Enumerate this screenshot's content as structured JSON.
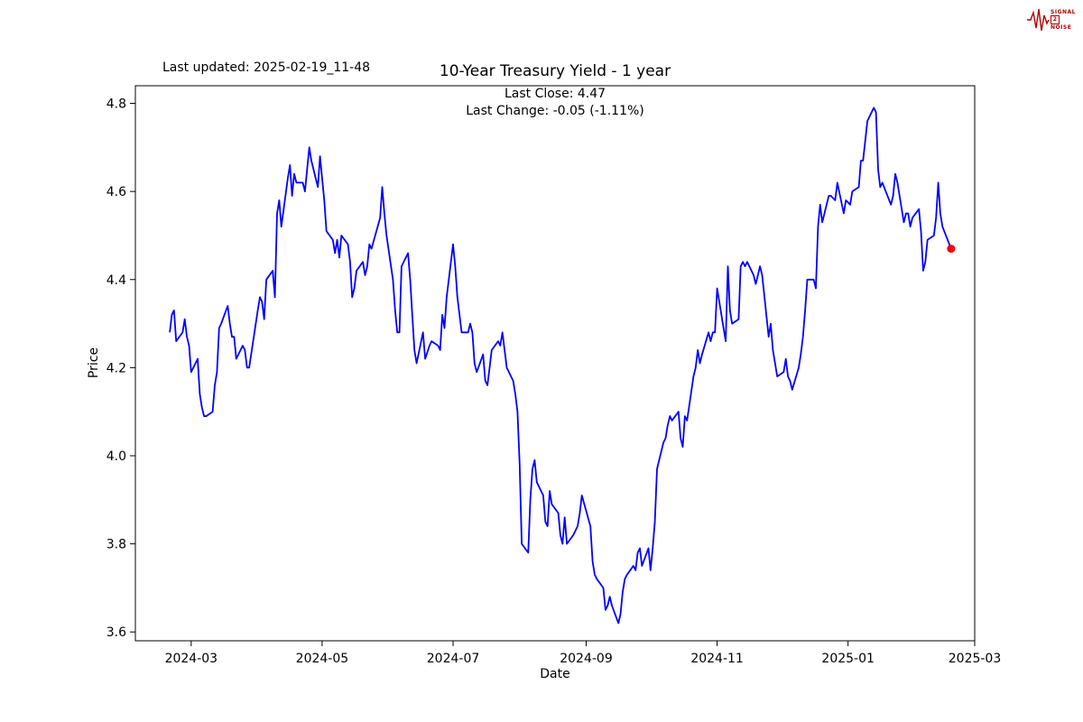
{
  "header": {
    "last_updated": "Last updated: 2025-02-19_11-48",
    "logo_lines": [
      "SIGNAL",
      "2",
      "NOISE"
    ]
  },
  "chart_data": {
    "type": "line",
    "title": "10-Year Treasury Yield - 1 year",
    "subtitle_lines": [
      "Last Close: 4.47",
      "Last Change: -0.05 (-1.11%)"
    ],
    "xlabel": "Date",
    "ylabel": "Price",
    "last_close": 4.47,
    "last_change": -0.05,
    "last_change_pct": "-1.11%",
    "line_color": "#0000ff",
    "marker_color": "#ff0000",
    "grid": false,
    "ylim": [
      3.58,
      4.84
    ],
    "x_domain": [
      "2024-02-04",
      "2025-03-01"
    ],
    "y_ticks": [
      {
        "value": 3.6,
        "label": "3.6"
      },
      {
        "value": 3.8,
        "label": "3.8"
      },
      {
        "value": 4.0,
        "label": "4.0"
      },
      {
        "value": 4.2,
        "label": "4.2"
      },
      {
        "value": 4.4,
        "label": "4.4"
      },
      {
        "value": 4.6,
        "label": "4.6"
      },
      {
        "value": 4.8,
        "label": "4.8"
      }
    ],
    "x_ticks": [
      {
        "date": "2024-03-01",
        "label": "2024-03"
      },
      {
        "date": "2024-05-01",
        "label": "2024-05"
      },
      {
        "date": "2024-07-01",
        "label": "2024-07"
      },
      {
        "date": "2024-09-01",
        "label": "2024-09"
      },
      {
        "date": "2024-11-01",
        "label": "2024-11"
      },
      {
        "date": "2025-01-01",
        "label": "2025-01"
      },
      {
        "date": "2025-03-01",
        "label": "2025-03"
      }
    ],
    "series": [
      {
        "name": "10-Year Treasury Yield",
        "color": "#0000ff",
        "points": [
          [
            "2024-02-20",
            4.28
          ],
          [
            "2024-02-21",
            4.32
          ],
          [
            "2024-02-22",
            4.33
          ],
          [
            "2024-02-23",
            4.26
          ],
          [
            "2024-02-26",
            4.28
          ],
          [
            "2024-02-27",
            4.31
          ],
          [
            "2024-02-28",
            4.27
          ],
          [
            "2024-02-29",
            4.25
          ],
          [
            "2024-03-01",
            4.19
          ],
          [
            "2024-03-04",
            4.22
          ],
          [
            "2024-03-05",
            4.14
          ],
          [
            "2024-03-06",
            4.11
          ],
          [
            "2024-03-07",
            4.09
          ],
          [
            "2024-03-08",
            4.09
          ],
          [
            "2024-03-11",
            4.1
          ],
          [
            "2024-03-12",
            4.16
          ],
          [
            "2024-03-13",
            4.19
          ],
          [
            "2024-03-14",
            4.29
          ],
          [
            "2024-03-15",
            4.3
          ],
          [
            "2024-03-18",
            4.34
          ],
          [
            "2024-03-19",
            4.3
          ],
          [
            "2024-03-20",
            4.27
          ],
          [
            "2024-03-21",
            4.27
          ],
          [
            "2024-03-22",
            4.22
          ],
          [
            "2024-03-25",
            4.25
          ],
          [
            "2024-03-26",
            4.24
          ],
          [
            "2024-03-27",
            4.2
          ],
          [
            "2024-03-28",
            4.2
          ],
          [
            "2024-04-01",
            4.33
          ],
          [
            "2024-04-02",
            4.36
          ],
          [
            "2024-04-03",
            4.35
          ],
          [
            "2024-04-04",
            4.31
          ],
          [
            "2024-04-05",
            4.4
          ],
          [
            "2024-04-08",
            4.42
          ],
          [
            "2024-04-09",
            4.36
          ],
          [
            "2024-04-10",
            4.55
          ],
          [
            "2024-04-11",
            4.58
          ],
          [
            "2024-04-12",
            4.52
          ],
          [
            "2024-04-15",
            4.63
          ],
          [
            "2024-04-16",
            4.66
          ],
          [
            "2024-04-17",
            4.59
          ],
          [
            "2024-04-18",
            4.64
          ],
          [
            "2024-04-19",
            4.62
          ],
          [
            "2024-04-22",
            4.62
          ],
          [
            "2024-04-23",
            4.6
          ],
          [
            "2024-04-24",
            4.65
          ],
          [
            "2024-04-25",
            4.7
          ],
          [
            "2024-04-26",
            4.67
          ],
          [
            "2024-04-29",
            4.61
          ],
          [
            "2024-04-30",
            4.68
          ],
          [
            "2024-05-01",
            4.63
          ],
          [
            "2024-05-02",
            4.58
          ],
          [
            "2024-05-03",
            4.51
          ],
          [
            "2024-05-06",
            4.49
          ],
          [
            "2024-05-07",
            4.46
          ],
          [
            "2024-05-08",
            4.49
          ],
          [
            "2024-05-09",
            4.45
          ],
          [
            "2024-05-10",
            4.5
          ],
          [
            "2024-05-13",
            4.48
          ],
          [
            "2024-05-14",
            4.44
          ],
          [
            "2024-05-15",
            4.36
          ],
          [
            "2024-05-16",
            4.38
          ],
          [
            "2024-05-17",
            4.42
          ],
          [
            "2024-05-20",
            4.44
          ],
          [
            "2024-05-21",
            4.41
          ],
          [
            "2024-05-22",
            4.43
          ],
          [
            "2024-05-23",
            4.48
          ],
          [
            "2024-05-24",
            4.47
          ],
          [
            "2024-05-28",
            4.54
          ],
          [
            "2024-05-29",
            4.61
          ],
          [
            "2024-05-30",
            4.55
          ],
          [
            "2024-05-31",
            4.5
          ],
          [
            "2024-06-03",
            4.4
          ],
          [
            "2024-06-04",
            4.33
          ],
          [
            "2024-06-05",
            4.28
          ],
          [
            "2024-06-06",
            4.28
          ],
          [
            "2024-06-07",
            4.43
          ],
          [
            "2024-06-10",
            4.46
          ],
          [
            "2024-06-11",
            4.4
          ],
          [
            "2024-06-12",
            4.32
          ],
          [
            "2024-06-13",
            4.24
          ],
          [
            "2024-06-14",
            4.21
          ],
          [
            "2024-06-17",
            4.28
          ],
          [
            "2024-06-18",
            4.22
          ],
          [
            "2024-06-20",
            4.25
          ],
          [
            "2024-06-21",
            4.26
          ],
          [
            "2024-06-24",
            4.25
          ],
          [
            "2024-06-25",
            4.24
          ],
          [
            "2024-06-26",
            4.32
          ],
          [
            "2024-06-27",
            4.29
          ],
          [
            "2024-06-28",
            4.36
          ],
          [
            "2024-07-01",
            4.48
          ],
          [
            "2024-07-02",
            4.43
          ],
          [
            "2024-07-03",
            4.36
          ],
          [
            "2024-07-05",
            4.28
          ],
          [
            "2024-07-08",
            4.28
          ],
          [
            "2024-07-09",
            4.3
          ],
          [
            "2024-07-10",
            4.28
          ],
          [
            "2024-07-11",
            4.21
          ],
          [
            "2024-07-12",
            4.19
          ],
          [
            "2024-07-15",
            4.23
          ],
          [
            "2024-07-16",
            4.17
          ],
          [
            "2024-07-17",
            4.16
          ],
          [
            "2024-07-18",
            4.2
          ],
          [
            "2024-07-19",
            4.24
          ],
          [
            "2024-07-22",
            4.26
          ],
          [
            "2024-07-23",
            4.25
          ],
          [
            "2024-07-24",
            4.28
          ],
          [
            "2024-07-25",
            4.24
          ],
          [
            "2024-07-26",
            4.2
          ],
          [
            "2024-07-29",
            4.17
          ],
          [
            "2024-07-30",
            4.14
          ],
          [
            "2024-07-31",
            4.1
          ],
          [
            "2024-08-01",
            3.98
          ],
          [
            "2024-08-02",
            3.8
          ],
          [
            "2024-08-05",
            3.78
          ],
          [
            "2024-08-06",
            3.9
          ],
          [
            "2024-08-07",
            3.97
          ],
          [
            "2024-08-08",
            3.99
          ],
          [
            "2024-08-09",
            3.94
          ],
          [
            "2024-08-12",
            3.91
          ],
          [
            "2024-08-13",
            3.85
          ],
          [
            "2024-08-14",
            3.84
          ],
          [
            "2024-08-15",
            3.92
          ],
          [
            "2024-08-16",
            3.89
          ],
          [
            "2024-08-19",
            3.87
          ],
          [
            "2024-08-20",
            3.82
          ],
          [
            "2024-08-21",
            3.8
          ],
          [
            "2024-08-22",
            3.86
          ],
          [
            "2024-08-23",
            3.8
          ],
          [
            "2024-08-26",
            3.82
          ],
          [
            "2024-08-27",
            3.83
          ],
          [
            "2024-08-28",
            3.84
          ],
          [
            "2024-08-29",
            3.87
          ],
          [
            "2024-08-30",
            3.91
          ],
          [
            "2024-09-03",
            3.84
          ],
          [
            "2024-09-04",
            3.76
          ],
          [
            "2024-09-05",
            3.73
          ],
          [
            "2024-09-06",
            3.72
          ],
          [
            "2024-09-09",
            3.7
          ],
          [
            "2024-09-10",
            3.65
          ],
          [
            "2024-09-11",
            3.66
          ],
          [
            "2024-09-12",
            3.68
          ],
          [
            "2024-09-13",
            3.66
          ],
          [
            "2024-09-16",
            3.62
          ],
          [
            "2024-09-17",
            3.64
          ],
          [
            "2024-09-18",
            3.69
          ],
          [
            "2024-09-19",
            3.72
          ],
          [
            "2024-09-20",
            3.73
          ],
          [
            "2024-09-23",
            3.75
          ],
          [
            "2024-09-24",
            3.74
          ],
          [
            "2024-09-25",
            3.78
          ],
          [
            "2024-09-26",
            3.79
          ],
          [
            "2024-09-27",
            3.75
          ],
          [
            "2024-09-30",
            3.79
          ],
          [
            "2024-10-01",
            3.74
          ],
          [
            "2024-10-02",
            3.79
          ],
          [
            "2024-10-03",
            3.85
          ],
          [
            "2024-10-04",
            3.97
          ],
          [
            "2024-10-07",
            4.03
          ],
          [
            "2024-10-08",
            4.04
          ],
          [
            "2024-10-09",
            4.07
          ],
          [
            "2024-10-10",
            4.09
          ],
          [
            "2024-10-11",
            4.08
          ],
          [
            "2024-10-14",
            4.1
          ],
          [
            "2024-10-15",
            4.04
          ],
          [
            "2024-10-16",
            4.02
          ],
          [
            "2024-10-17",
            4.09
          ],
          [
            "2024-10-18",
            4.08
          ],
          [
            "2024-10-21",
            4.18
          ],
          [
            "2024-10-22",
            4.2
          ],
          [
            "2024-10-23",
            4.24
          ],
          [
            "2024-10-24",
            4.21
          ],
          [
            "2024-10-25",
            4.23
          ],
          [
            "2024-10-28",
            4.28
          ],
          [
            "2024-10-29",
            4.26
          ],
          [
            "2024-10-30",
            4.28
          ],
          [
            "2024-10-31",
            4.28
          ],
          [
            "2024-11-01",
            4.38
          ],
          [
            "2024-11-04",
            4.29
          ],
          [
            "2024-11-05",
            4.26
          ],
          [
            "2024-11-06",
            4.43
          ],
          [
            "2024-11-07",
            4.33
          ],
          [
            "2024-11-08",
            4.3
          ],
          [
            "2024-11-11",
            4.31
          ],
          [
            "2024-11-12",
            4.43
          ],
          [
            "2024-11-13",
            4.44
          ],
          [
            "2024-11-14",
            4.43
          ],
          [
            "2024-11-15",
            4.44
          ],
          [
            "2024-11-18",
            4.41
          ],
          [
            "2024-11-19",
            4.39
          ],
          [
            "2024-11-20",
            4.41
          ],
          [
            "2024-11-21",
            4.43
          ],
          [
            "2024-11-22",
            4.41
          ],
          [
            "2024-11-25",
            4.27
          ],
          [
            "2024-11-26",
            4.3
          ],
          [
            "2024-11-27",
            4.24
          ],
          [
            "2024-11-29",
            4.18
          ],
          [
            "2024-12-02",
            4.19
          ],
          [
            "2024-12-03",
            4.22
          ],
          [
            "2024-12-04",
            4.18
          ],
          [
            "2024-12-05",
            4.17
          ],
          [
            "2024-12-06",
            4.15
          ],
          [
            "2024-12-09",
            4.2
          ],
          [
            "2024-12-10",
            4.23
          ],
          [
            "2024-12-11",
            4.27
          ],
          [
            "2024-12-12",
            4.33
          ],
          [
            "2024-12-13",
            4.4
          ],
          [
            "2024-12-16",
            4.4
          ],
          [
            "2024-12-17",
            4.38
          ],
          [
            "2024-12-18",
            4.52
          ],
          [
            "2024-12-19",
            4.57
          ],
          [
            "2024-12-20",
            4.53
          ],
          [
            "2024-12-23",
            4.59
          ],
          [
            "2024-12-24",
            4.59
          ],
          [
            "2024-12-26",
            4.58
          ],
          [
            "2024-12-27",
            4.62
          ],
          [
            "2024-12-30",
            4.55
          ],
          [
            "2024-12-31",
            4.58
          ],
          [
            "2025-01-02",
            4.57
          ],
          [
            "2025-01-03",
            4.6
          ],
          [
            "2025-01-06",
            4.61
          ],
          [
            "2025-01-07",
            4.67
          ],
          [
            "2025-01-08",
            4.67
          ],
          [
            "2025-01-10",
            4.76
          ],
          [
            "2025-01-13",
            4.79
          ],
          [
            "2025-01-14",
            4.78
          ],
          [
            "2025-01-15",
            4.65
          ],
          [
            "2025-01-16",
            4.61
          ],
          [
            "2025-01-17",
            4.62
          ],
          [
            "2025-01-21",
            4.57
          ],
          [
            "2025-01-22",
            4.59
          ],
          [
            "2025-01-23",
            4.64
          ],
          [
            "2025-01-24",
            4.62
          ],
          [
            "2025-01-27",
            4.53
          ],
          [
            "2025-01-28",
            4.55
          ],
          [
            "2025-01-29",
            4.55
          ],
          [
            "2025-01-30",
            4.52
          ],
          [
            "2025-01-31",
            4.54
          ],
          [
            "2025-02-03",
            4.56
          ],
          [
            "2025-02-04",
            4.51
          ],
          [
            "2025-02-05",
            4.42
          ],
          [
            "2025-02-06",
            4.44
          ],
          [
            "2025-02-07",
            4.49
          ],
          [
            "2025-02-10",
            4.5
          ],
          [
            "2025-02-11",
            4.54
          ],
          [
            "2025-02-12",
            4.62
          ],
          [
            "2025-02-13",
            4.55
          ],
          [
            "2025-02-14",
            4.52
          ],
          [
            "2025-02-18",
            4.47
          ]
        ]
      }
    ]
  }
}
